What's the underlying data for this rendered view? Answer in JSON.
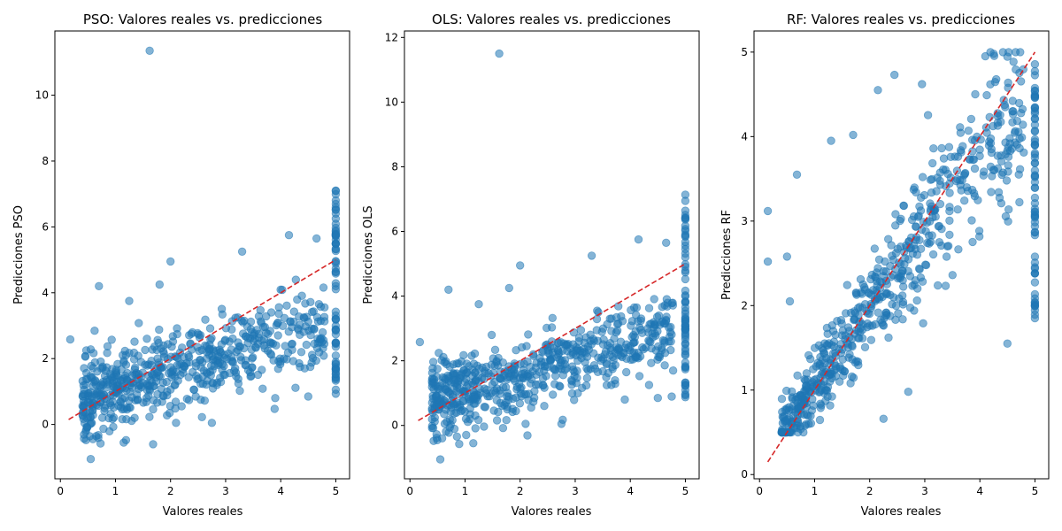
{
  "figure": {
    "background": "#ffffff",
    "point_color": "#1f77b4",
    "point_alpha": 0.55,
    "diagonal_color": "#d62728"
  },
  "chart_data": [
    {
      "type": "scatter",
      "title": "PSO: Valores reales vs. predicciones",
      "xlabel": "Valores reales",
      "ylabel": "Predicciones PSO",
      "xlim": [
        -0.1,
        5.25
      ],
      "ylim": [
        -1.65,
        11.95
      ],
      "xticks": [
        0,
        1,
        2,
        3,
        4,
        5
      ],
      "yticks": [
        0,
        2,
        4,
        6,
        8,
        10
      ],
      "reference_line": {
        "style": "dashed",
        "from": [
          0.15,
          0.15
        ],
        "to": [
          5.0,
          5.0
        ]
      },
      "trend": {
        "slope": 0.52,
        "intercept": 0.55,
        "noise": 0.6
      },
      "outliers": [
        [
          1.62,
          11.35
        ],
        [
          0.7,
          4.2
        ],
        [
          0.55,
          -1.05
        ],
        [
          1.15,
          -0.55
        ],
        [
          2.75,
          0.05
        ],
        [
          0.18,
          2.58
        ],
        [
          4.5,
          0.85
        ],
        [
          3.9,
          0.8
        ],
        [
          3.3,
          5.25
        ],
        [
          4.15,
          5.75
        ],
        [
          2.0,
          4.95
        ],
        [
          4.65,
          5.65
        ],
        [
          1.8,
          4.25
        ],
        [
          1.25,
          3.75
        ],
        [
          2.2,
          0.55
        ],
        [
          2.1,
          0.05
        ]
      ],
      "ceiling_column": {
        "x": 5.0,
        "y_min": 0.85,
        "y_max": 7.25
      }
    },
    {
      "type": "scatter",
      "title": "OLS: Valores reales vs. predicciones",
      "xlabel": "Valores reales",
      "ylabel": "Predicciones OLS",
      "xlim": [
        -0.1,
        5.25
      ],
      "ylim": [
        -1.65,
        12.2
      ],
      "xticks": [
        0,
        1,
        2,
        3,
        4,
        5
      ],
      "yticks": [
        0,
        2,
        4,
        6,
        8,
        10,
        12
      ],
      "reference_line": {
        "style": "dashed",
        "from": [
          0.15,
          0.15
        ],
        "to": [
          5.0,
          5.0
        ]
      },
      "trend": {
        "slope": 0.52,
        "intercept": 0.55,
        "noise": 0.6
      },
      "outliers": [
        [
          1.62,
          11.5
        ],
        [
          0.7,
          4.2
        ],
        [
          0.55,
          -1.05
        ],
        [
          1.15,
          -0.55
        ],
        [
          2.75,
          0.05
        ],
        [
          0.18,
          2.58
        ],
        [
          4.5,
          0.85
        ],
        [
          3.9,
          0.8
        ],
        [
          3.3,
          5.25
        ],
        [
          4.15,
          5.75
        ],
        [
          2.0,
          4.95
        ],
        [
          4.65,
          5.65
        ],
        [
          1.8,
          4.25
        ],
        [
          1.25,
          3.75
        ],
        [
          2.2,
          0.55
        ],
        [
          2.1,
          0.05
        ]
      ],
      "ceiling_column": {
        "x": 5.0,
        "y_min": 0.85,
        "y_max": 7.25
      }
    },
    {
      "type": "scatter",
      "title": "RF: Valores reales vs. predicciones",
      "xlabel": "Valores reales",
      "ylabel": "Predicciones RF",
      "xlim": [
        -0.1,
        5.25
      ],
      "ylim": [
        -0.05,
        5.25
      ],
      "xticks": [
        0,
        1,
        2,
        3,
        4,
        5
      ],
      "yticks": [
        0,
        1,
        2,
        3,
        4,
        5
      ],
      "reference_line": {
        "style": "dashed",
        "from": [
          0.15,
          0.15
        ],
        "to": [
          5.0,
          5.0
        ]
      },
      "trend": {
        "slope": 0.9,
        "intercept": 0.15,
        "noise": 0.35
      },
      "outliers": [
        [
          0.15,
          3.12
        ],
        [
          0.15,
          2.52
        ],
        [
          0.68,
          3.55
        ],
        [
          1.3,
          3.95
        ],
        [
          2.15,
          4.55
        ],
        [
          2.45,
          4.73
        ],
        [
          2.95,
          4.62
        ],
        [
          1.7,
          4.02
        ],
        [
          2.25,
          0.66
        ],
        [
          2.7,
          0.98
        ],
        [
          4.5,
          1.55
        ],
        [
          5.0,
          1.85
        ],
        [
          4.1,
          4.95
        ],
        [
          4.25,
          4.98
        ],
        [
          0.55,
          2.05
        ],
        [
          0.5,
          2.58
        ]
      ],
      "ceiling_column": {
        "x": 5.0,
        "y_min": 1.85,
        "y_max": 5.0
      }
    }
  ]
}
